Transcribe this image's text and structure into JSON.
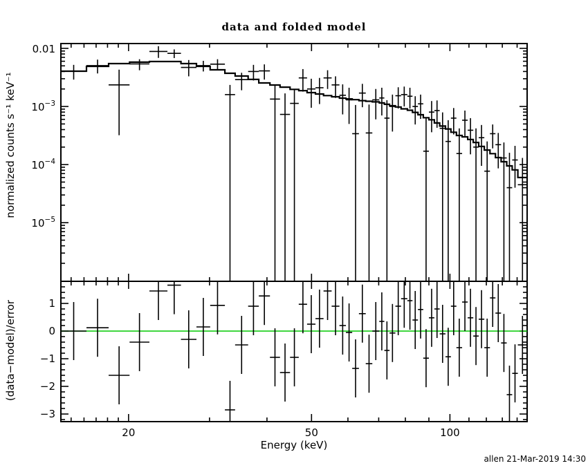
{
  "footer": {
    "text": "allen 21-Mar-2019 14:30"
  },
  "colors": {
    "foreground": "#000000",
    "background": "#ffffff",
    "zero_line": "#00c800"
  },
  "chart_data": {
    "type": "scatter",
    "title": "data and folded model",
    "xlabel": "Energy (keV)",
    "xscale": "log",
    "xlim": [
      14.25,
      147.2
    ],
    "xticks": [
      {
        "v": 20,
        "label": "20"
      },
      {
        "v": 50,
        "label": "50"
      },
      {
        "v": 100,
        "label": "100"
      }
    ],
    "xminor": [
      15,
      16,
      17,
      18,
      19,
      30,
      40,
      60,
      70,
      80,
      90,
      110,
      120,
      130,
      140
    ],
    "grid": false,
    "legend": "none",
    "bin_edges": [
      14.25,
      16.2,
      18.1,
      20.1,
      22.2,
      24.3,
      26.0,
      28.1,
      30.1,
      32.4,
      34.1,
      36.4,
      38.4,
      40.6,
      42.7,
      44.9,
      46.9,
      48.9,
      51.0,
      53.1,
      55.3,
      57.5,
      59.4,
      61.3,
      63.4,
      65.6,
      67.8,
      70.2,
      72.0,
      73.9,
      76.1,
      78.3,
      80.8,
      82.9,
      85.2,
      87.5,
      90.0,
      92.5,
      95.0,
      97.8,
      100.5,
      103.3,
      106.3,
      109.3,
      112.4,
      115.5,
      118.8,
      122.2,
      125.6,
      129.2,
      132.9,
      136.6,
      140.5,
      147.2
    ],
    "panels": [
      {
        "name": "spectrum",
        "ylabel": "normalized counts s⁻¹ keV⁻¹",
        "yscale": "log",
        "ylim": [
          9.8e-07,
          0.0121
        ],
        "yticks": [
          {
            "v": 0.01,
            "label": "0.01"
          },
          {
            "v": 0.001,
            "label": "10",
            "sup": "−3"
          },
          {
            "v": 0.0001,
            "label": "10",
            "sup": "−4"
          },
          {
            "v": 1e-05,
            "label": "10",
            "sup": "−5"
          }
        ],
        "model_step": [
          0.00405,
          0.0049,
          0.00547,
          0.00579,
          0.00594,
          0.00594,
          0.00547,
          0.0049,
          0.00427,
          0.00373,
          0.00334,
          0.00292,
          0.00254,
          0.00234,
          0.00215,
          0.00197,
          0.00187,
          0.00173,
          0.00164,
          0.00154,
          0.00147,
          0.00139,
          0.00135,
          0.00131,
          0.00126,
          0.00123,
          0.0012,
          0.00115,
          0.00109,
          0.00103,
          0.00098,
          0.00091,
          0.00086,
          0.00079,
          0.00072,
          0.00064,
          0.00059,
          0.00052,
          0.00046,
          0.00041,
          0.00036,
          0.000317,
          0.0003,
          0.00027,
          0.00024,
          0.000205,
          0.000178,
          0.000154,
          0.000132,
          0.000112,
          9.5e-05,
          8.1e-05,
          6e-05
        ],
        "data_y": [
          0.00405,
          0.00505,
          0.00235,
          0.0054,
          0.00885,
          0.0082,
          0.0047,
          0.00505,
          0.00535,
          0.0016,
          0.0029,
          0.004,
          0.0041,
          0.00134,
          0.00073,
          0.00113,
          0.0031,
          0.002,
          0.0021,
          0.0031,
          0.00235,
          0.00156,
          0.0013,
          0.00034,
          0.0017,
          0.00035,
          0.0013,
          0.0014,
          0.00063,
          0.001,
          0.00153,
          0.0016,
          0.0015,
          0.001,
          0.00111,
          0.00017,
          0.0008,
          0.00085,
          0.00042,
          0.00025,
          0.00063,
          0.000155,
          0.00058,
          0.00039,
          0.0002,
          0.00029,
          7.7e-05,
          0.00034,
          0.00022,
          0.00013,
          4e-05,
          0.00012,
          4.5e-05
        ],
        "data_yhi": [
          0.0052,
          0.0064,
          0.0043,
          0.0065,
          0.0109,
          0.0096,
          0.0063,
          0.0061,
          0.0065,
          0.00235,
          0.0038,
          0.0052,
          0.0053,
          0.0024,
          0.00168,
          0.002,
          0.0044,
          0.003,
          0.0031,
          0.0042,
          0.0033,
          0.0024,
          0.0021,
          0.00106,
          0.00245,
          0.00108,
          0.002,
          0.0021,
          0.00128,
          0.0016,
          0.00214,
          0.0022,
          0.0021,
          0.0015,
          0.0016,
          0.00065,
          0.00124,
          0.00127,
          0.00079,
          0.00058,
          0.00094,
          0.00042,
          0.00085,
          0.00063,
          0.00042,
          0.00048,
          0.00025,
          0.00049,
          0.00035,
          0.00024,
          0.00016,
          0.00021,
          0.00013
        ],
        "data_ylo": [
          0.0029,
          0.0037,
          0.00032,
          0.0042,
          0.00685,
          0.0068,
          0.0033,
          0.004,
          0.0042,
          null,
          0.0019,
          0.0028,
          0.0029,
          null,
          null,
          null,
          0.0018,
          0.00095,
          0.0011,
          0.002,
          0.0014,
          0.00073,
          0.0005,
          null,
          0.00097,
          null,
          0.0006,
          0.0007,
          null,
          0.00037,
          0.00092,
          0.001,
          0.00092,
          0.00049,
          0.00061,
          null,
          0.00036,
          0.00043,
          null,
          null,
          0.00033,
          null,
          0.00031,
          0.00015,
          null,
          9.5e-05,
          null,
          0.00019,
          8.6e-05,
          null,
          null,
          4e-05,
          null
        ]
      },
      {
        "name": "residuals",
        "ylabel": "(data−model)/error",
        "yscale": "linear",
        "ylim": [
          -3.275,
          1.8
        ],
        "yticks": [
          {
            "v": 1,
            "label": "1"
          },
          {
            "v": 0,
            "label": "0"
          },
          {
            "v": -1,
            "label": "−1"
          },
          {
            "v": -2,
            "label": "−2"
          },
          {
            "v": -3,
            "label": "−3"
          }
        ],
        "yminor_step": 0.2,
        "zero_line": 0,
        "resid_y": [
          0,
          0.12,
          -1.6,
          -0.4,
          1.45,
          1.66,
          -0.3,
          0.15,
          0.93,
          -2.85,
          -0.5,
          0.9,
          1.27,
          -0.95,
          -1.5,
          -0.95,
          0.97,
          0.25,
          0.45,
          1.45,
          0.9,
          0.2,
          -0.05,
          -1.35,
          0.63,
          -1.18,
          0,
          0.35,
          -0.7,
          -0.07,
          0.9,
          1.17,
          1.1,
          0.4,
          0.78,
          -0.98,
          0.48,
          0.8,
          -0.1,
          -0.93,
          0.9,
          -0.6,
          1.05,
          0.48,
          -0.18,
          0.43,
          -0.6,
          1.2,
          0.65,
          -0.43,
          -2.3,
          -1.53,
          -0.5
        ],
        "resid_err": 1.05
      }
    ]
  }
}
